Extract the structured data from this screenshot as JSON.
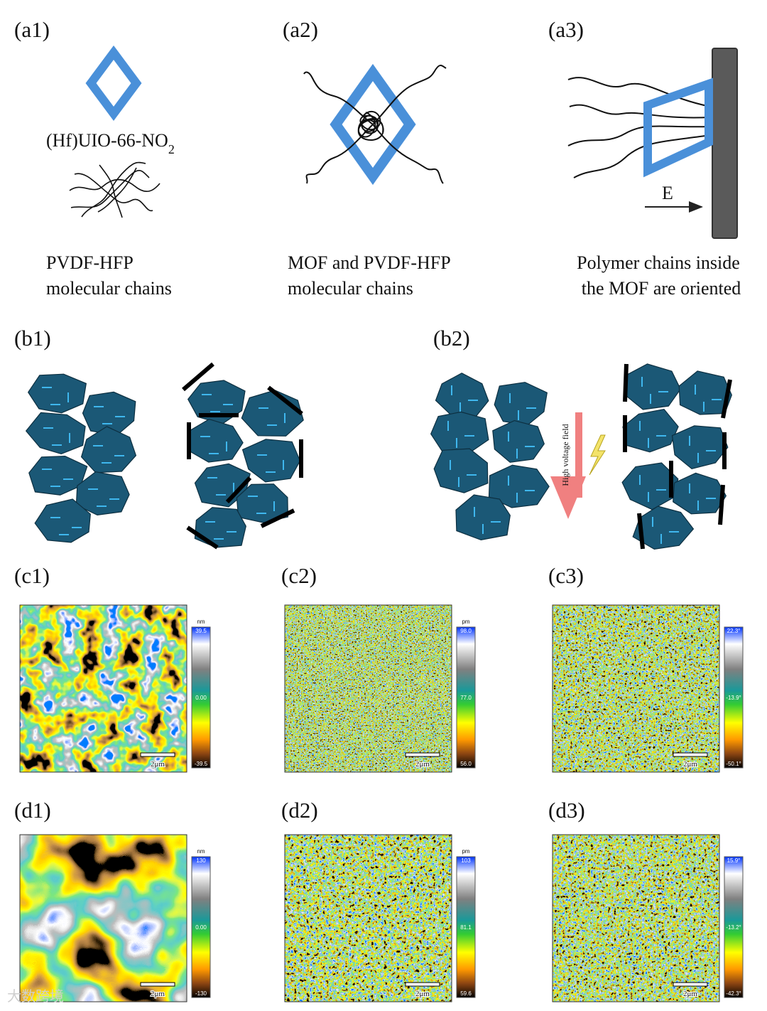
{
  "panels": {
    "a1": {
      "label": "(a1)",
      "formula": {
        "text": "(Hf)UIO-66-NO",
        "subscript": "2"
      },
      "caption": [
        "PVDF-HFP",
        "molecular chains"
      ]
    },
    "a2": {
      "label": "(a2)",
      "caption": [
        "MOF and PVDF-HFP",
        "molecular chains"
      ]
    },
    "a3": {
      "label": "(a3)",
      "field": "E",
      "caption": [
        "Polymer chains inside",
        "the MOF are oriented"
      ]
    },
    "b1": {
      "label": "(b1)"
    },
    "b2": {
      "label": "(b2)",
      "field": "High voltage field"
    }
  },
  "maps": [
    {
      "label": "(c1)",
      "unit": "nm",
      "scale_max": "39.5",
      "scale_mid": "0.00",
      "scale_min": "-39.5",
      "scale_bar": "2μm"
    },
    {
      "label": "(c2)",
      "unit": "pm",
      "scale_max": "98.0",
      "scale_mid": "77.0",
      "scale_min": "56.0",
      "scale_bar": "2μm"
    },
    {
      "label": "(c3)",
      "scale_max": "22.3°",
      "scale_mid": "-13.9°",
      "scale_min": "-50.1°",
      "scale_bar": "2μm"
    },
    {
      "label": "(d1)",
      "unit": "nm",
      "scale_max": "130",
      "scale_mid": "0.00",
      "scale_min": "-130",
      "scale_bar": "2μm"
    },
    {
      "label": "(d2)",
      "unit": "pm",
      "scale_max": "103",
      "scale_mid": "81.1",
      "scale_min": "59.6",
      "scale_bar": "2μm"
    },
    {
      "label": "(d3)",
      "scale_max": "15.9°",
      "scale_mid": "-13.2°",
      "scale_min": "-42.3°",
      "scale_bar": "2μm"
    }
  ],
  "watermark": "大数跨境"
}
